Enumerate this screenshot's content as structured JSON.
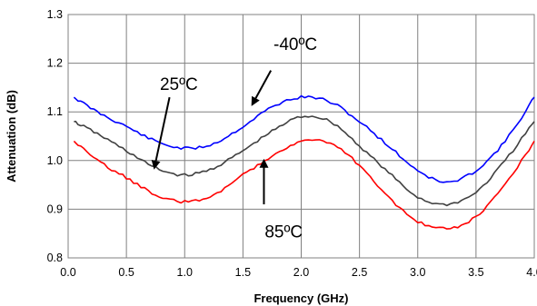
{
  "chart_data": {
    "type": "line",
    "title": "",
    "xlabel": "Frequency (GHz)",
    "ylabel": "Attenuation (dB)",
    "xlim": [
      0.0,
      4.0
    ],
    "ylim": [
      0.8,
      1.3
    ],
    "x_ticks": [
      "0.0",
      "0.5",
      "1.0",
      "1.5",
      "2.0",
      "2.5",
      "3.0",
      "3.5",
      "4.0"
    ],
    "y_ticks": [
      "0.8",
      "0.9",
      "1.0",
      "1.1",
      "1.2",
      "1.3"
    ],
    "grid": {
      "horizontal": true,
      "vertical": true
    },
    "x": [
      0.05,
      0.25,
      0.5,
      0.75,
      1.0,
      1.25,
      1.5,
      1.75,
      2.0,
      2.25,
      2.5,
      2.75,
      3.0,
      3.25,
      3.5,
      3.75,
      4.0
    ],
    "series": [
      {
        "color": "#0000ff",
        "values": [
          1.13,
          1.1,
          1.07,
          1.04,
          1.025,
          1.035,
          1.07,
          1.11,
          1.13,
          1.12,
          1.08,
          1.03,
          0.98,
          0.955,
          0.98,
          1.04,
          1.13
        ]
      },
      {
        "color": "#404040",
        "values": [
          1.08,
          1.055,
          1.02,
          0.985,
          0.97,
          0.985,
          1.02,
          1.06,
          1.09,
          1.08,
          1.03,
          0.975,
          0.925,
          0.91,
          0.935,
          1.0,
          1.08
        ]
      },
      {
        "color": "#ff0000",
        "values": [
          1.04,
          1.0,
          0.965,
          0.93,
          0.915,
          0.93,
          0.97,
          1.01,
          1.04,
          1.035,
          0.99,
          0.925,
          0.875,
          0.86,
          0.885,
          0.95,
          1.04
        ]
      }
    ],
    "annotations": [
      {
        "text": "-40ºC",
        "x": 1.95,
        "y": 1.24
      },
      {
        "text": "25ºC",
        "x": 0.95,
        "y": 1.158
      },
      {
        "text": "85ºC",
        "x": 1.85,
        "y": 0.855
      }
    ],
    "arrows": [
      {
        "from": [
          1.74,
          1.185
        ],
        "to": [
          1.58,
          1.115
        ]
      },
      {
        "from": [
          0.87,
          1.13
        ],
        "to": [
          0.74,
          0.985
        ]
      },
      {
        "from": [
          1.68,
          0.91
        ],
        "to": [
          1.68,
          1.0
        ]
      }
    ]
  }
}
